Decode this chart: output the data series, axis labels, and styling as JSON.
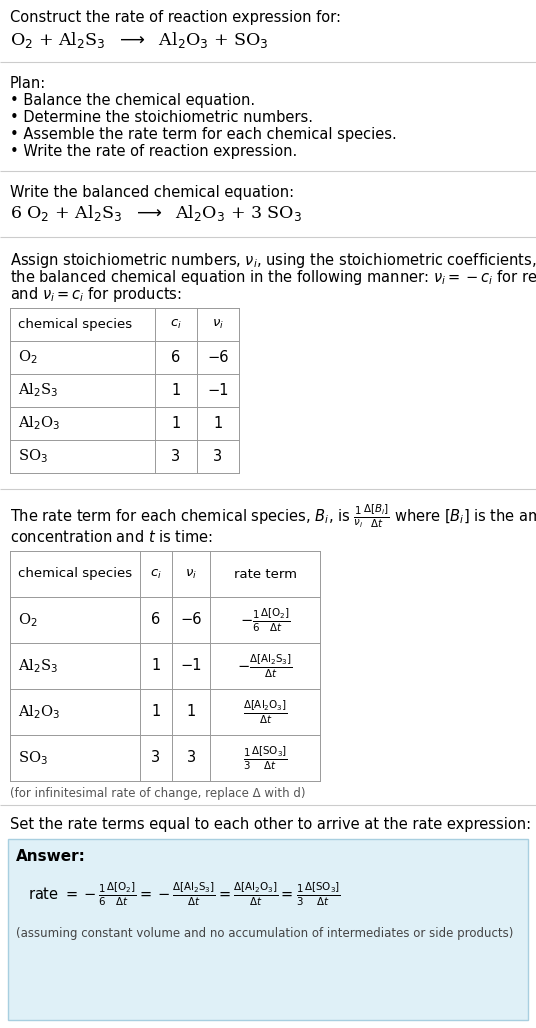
{
  "bg_color": "#ffffff",
  "text_color": "#000000",
  "gray_text": "#555555",
  "table_border_color": "#999999",
  "separator_color": "#cccccc",
  "answer_box_color": "#dff0f7",
  "answer_box_border": "#a8cfe0",
  "title_line1": "Construct the rate of reaction expression for:",
  "plan_title": "Plan:",
  "plan_steps": [
    "• Balance the chemical equation.",
    "• Determine the stoichiometric numbers.",
    "• Assemble the rate term for each chemical species.",
    "• Write the rate of reaction expression."
  ],
  "balanced_label": "Write the balanced chemical equation:",
  "stoich_line1": "Assign stoichiometric numbers, $\\nu_i$, using the stoichiometric coefficients, $c_i$, from",
  "stoich_line2": "the balanced chemical equation in the following manner: $\\nu_i = -c_i$ for reactants",
  "stoich_line3": "and $\\nu_i = c_i$ for products:",
  "rate_intro_line1": "The rate term for each chemical species, $B_i$, is $\\frac{1}{\\nu_i}\\frac{\\Delta[B_i]}{\\Delta t}$ where $[B_i]$ is the amount",
  "rate_intro_line2": "concentration and $t$ is time:",
  "infinitesimal_note": "(for infinitesimal rate of change, replace Δ with d)",
  "set_equal_text": "Set the rate terms equal to each other to arrive at the rate expression:",
  "answer_label": "Answer:",
  "answer_note": "(assuming constant volume and no accumulation of intermediates or side products)"
}
